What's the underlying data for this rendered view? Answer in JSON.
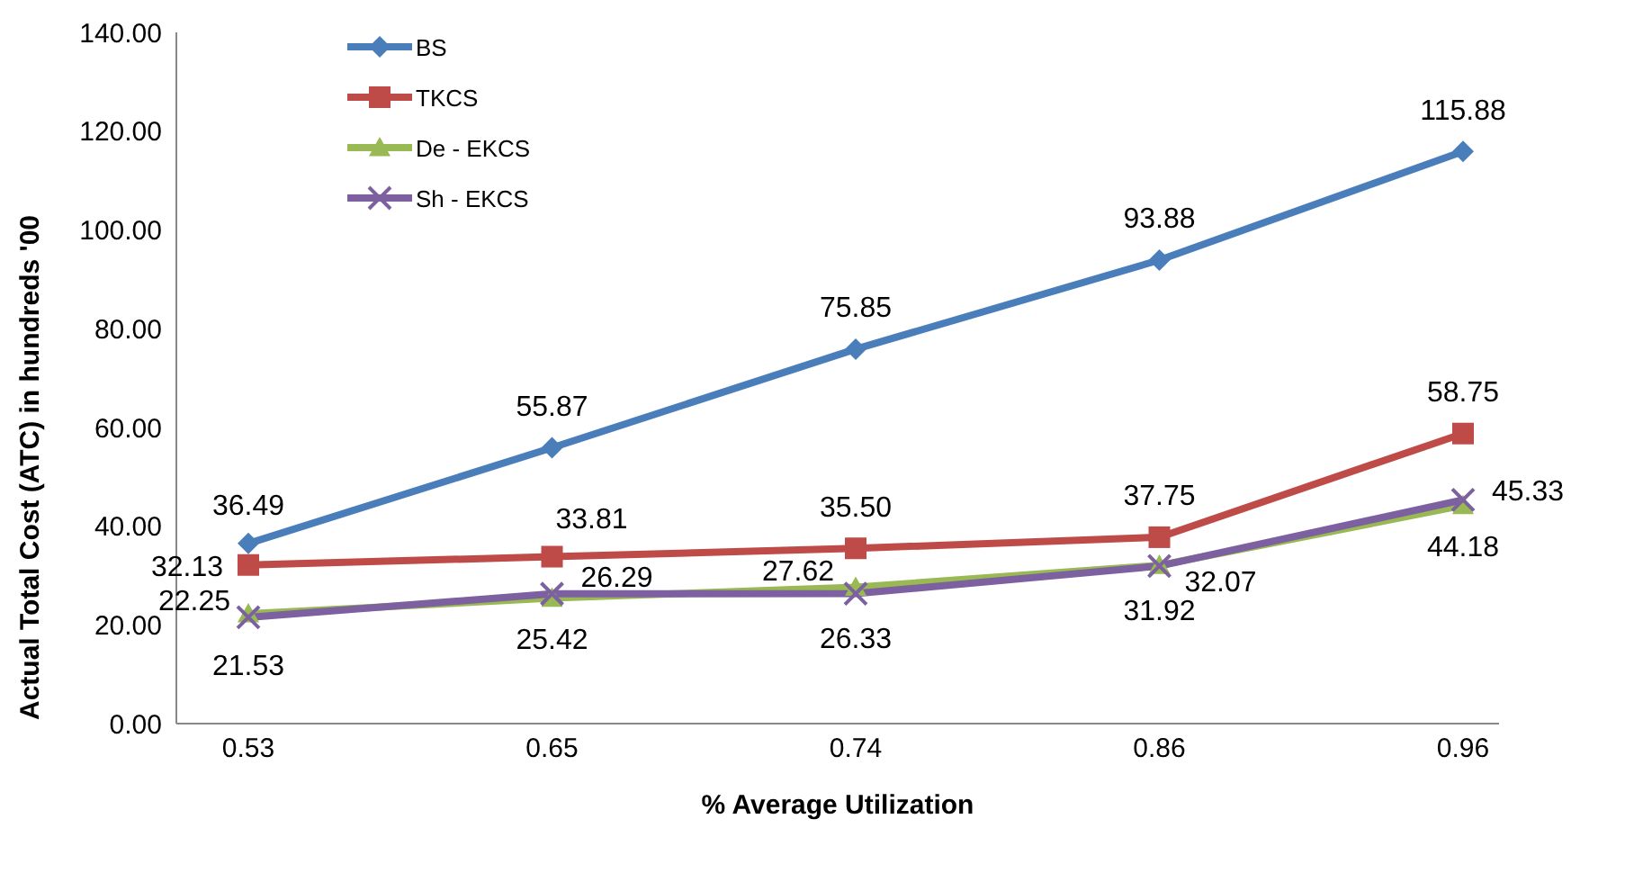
{
  "chart_data": {
    "type": "line",
    "xlabel": "% Average Utilization",
    "ylabel": "Actual Total Cost (ATC) in hundreds '00",
    "categories": [
      "0.53",
      "0.65",
      "0.74",
      "0.86",
      "0.96"
    ],
    "series": [
      {
        "name": "BS",
        "color": "#4a7ebb",
        "marker": "diamond",
        "values": [
          36.49,
          55.87,
          75.85,
          93.88,
          115.88
        ],
        "value_labels": [
          "36.49",
          "55.87",
          "75.85",
          "93.88",
          "115.88"
        ]
      },
      {
        "name": "TKCS",
        "color": "#be4b48",
        "marker": "square",
        "values": [
          32.13,
          33.81,
          35.5,
          37.75,
          58.75
        ],
        "value_labels": [
          "32.13",
          "33.81",
          "35.50",
          "37.75",
          "58.75"
        ]
      },
      {
        "name": "De - EKCS",
        "color": "#98b954",
        "marker": "triangle",
        "values": [
          22.25,
          25.42,
          27.62,
          32.07,
          44.18
        ],
        "value_labels": [
          "22.25",
          "25.42",
          "27.62",
          "32.07",
          "44.18"
        ]
      },
      {
        "name": "Sh - EKCS",
        "color": "#7d60a0",
        "marker": "cross",
        "values": [
          21.53,
          26.29,
          26.33,
          31.92,
          45.33
        ],
        "value_labels": [
          "21.53",
          "26.29",
          "26.33",
          "31.92",
          "45.33"
        ]
      }
    ],
    "ylim": [
      0,
      140
    ],
    "yticks": [
      {
        "value": 0,
        "label": "0.00"
      },
      {
        "value": 20,
        "label": "20.00"
      },
      {
        "value": 40,
        "label": "40.00"
      },
      {
        "value": 60,
        "label": "60.00"
      },
      {
        "value": 80,
        "label": "80.00"
      },
      {
        "value": 100,
        "label": "100.00"
      },
      {
        "value": 120,
        "label": "120.00"
      },
      {
        "value": 140,
        "label": "140.00"
      }
    ],
    "grid": false,
    "legend": "top left",
    "line_style": "solid"
  }
}
